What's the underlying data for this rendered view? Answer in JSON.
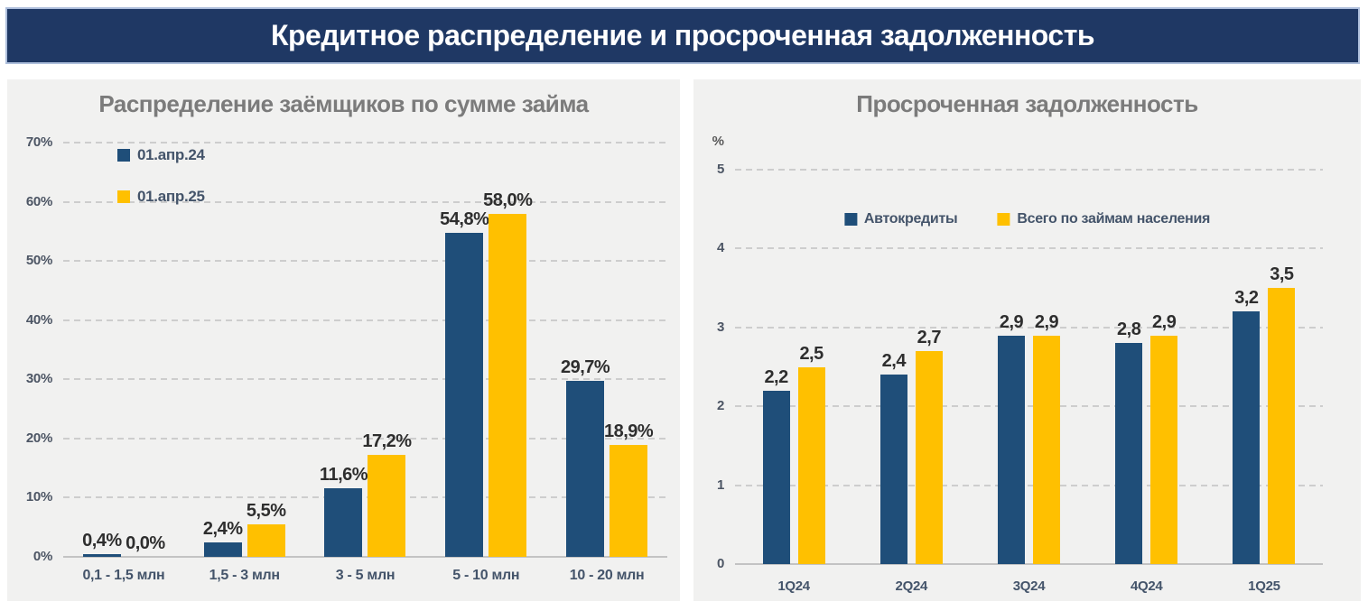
{
  "header": {
    "title": "Кредитное распределение и просроченная задолженность"
  },
  "colors": {
    "banner_bg": "#1F3864",
    "panel_bg": "#F1F1F0",
    "series_blue": "#1F4E79",
    "series_yellow": "#FFC000",
    "title_gray": "#7B7B7B",
    "axis_text": "#44546A"
  },
  "chart_data": [
    {
      "type": "bar",
      "title": "Распределение заёмщиков по сумме займа",
      "unit": "",
      "categories": [
        "0,1 - 1,5 млн",
        "1,5 - 3 млн",
        "3 - 5 млн",
        "5 - 10 млн",
        "10 - 20 млн"
      ],
      "series": [
        {
          "name": "01.апр.24",
          "color": "#1F4E79",
          "values": [
            0.4,
            2.4,
            11.6,
            54.8,
            29.7
          ],
          "labels": [
            "0,4%",
            "2,4%",
            "11,6%",
            "54,8%",
            "29,7%"
          ]
        },
        {
          "name": "01.апр.25",
          "color": "#FFC000",
          "values": [
            0.0,
            5.5,
            17.2,
            58.0,
            18.9
          ],
          "labels": [
            "0,0%",
            "5,5%",
            "17,2%",
            "58,0%",
            "18,9%"
          ]
        }
      ],
      "y_ticks": [
        "0%",
        "10%",
        "20%",
        "30%",
        "40%",
        "50%",
        "60%",
        "70%"
      ],
      "y_max": 70,
      "ylim": [
        0,
        70
      ],
      "grid": "dashed",
      "legend_position": "top-left-stacked"
    },
    {
      "type": "bar",
      "title": "Просроченная задолженность",
      "unit": "%",
      "categories": [
        "1Q24",
        "2Q24",
        "3Q24",
        "4Q24",
        "1Q25"
      ],
      "series": [
        {
          "name": "Автокредиты",
          "color": "#1F4E79",
          "values": [
            2.2,
            2.4,
            2.9,
            2.8,
            3.2
          ],
          "labels": [
            "2,2",
            "2,4",
            "2,9",
            "2,8",
            "3,2"
          ]
        },
        {
          "name": "Всего по займам населения",
          "color": "#FFC000",
          "values": [
            2.5,
            2.7,
            2.9,
            2.9,
            3.5
          ],
          "labels": [
            "2,5",
            "2,7",
            "2,9",
            "2,9",
            "3,5"
          ]
        }
      ],
      "y_ticks": [
        "0",
        "1",
        "2",
        "3",
        "4",
        "5"
      ],
      "y_max": 5,
      "ylim": [
        0,
        5
      ],
      "grid": "dashed",
      "legend_position": "top-center-horizontal"
    }
  ]
}
